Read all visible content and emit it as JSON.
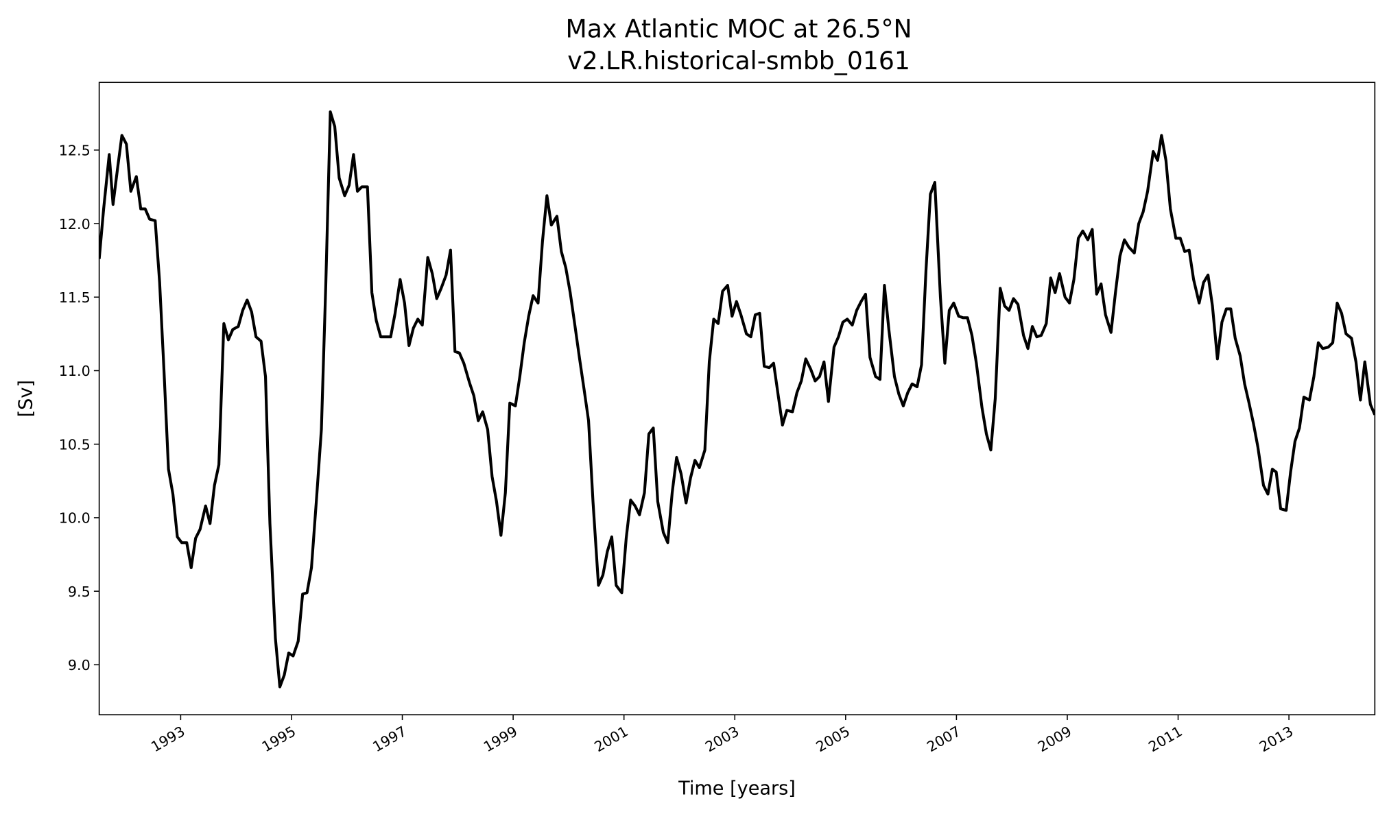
{
  "chart_data": {
    "type": "line",
    "title": "Max Atlantic MOC at 26.5°N",
    "subtitle": "v2.LR.historical-smbb_0161",
    "xlabel": "Time [years]",
    "ylabel": "[Sv]",
    "xlim": [
      1991.53,
      2014.55
    ],
    "ylim": [
      8.66,
      12.96
    ],
    "xticks": [
      "1993",
      "1995",
      "1997",
      "1999",
      "2001",
      "2003",
      "2005",
      "2007",
      "2009",
      "2011",
      "2013"
    ],
    "yticks": [
      "9.0",
      "9.5",
      "10.0",
      "10.5",
      "11.0",
      "11.5",
      "12.0",
      "12.5"
    ],
    "grid": false,
    "line_color": "#000000",
    "series": [
      {
        "points": [
          [
            1991.53,
            11.76
          ],
          [
            1991.61,
            12.1
          ],
          [
            1991.71,
            12.47
          ],
          [
            1991.78,
            12.13
          ],
          [
            1991.86,
            12.37
          ],
          [
            1991.94,
            12.6
          ],
          [
            1992.02,
            12.54
          ],
          [
            1992.1,
            12.22
          ],
          [
            1992.2,
            12.32
          ],
          [
            1992.28,
            12.1
          ],
          [
            1992.36,
            12.1
          ],
          [
            1992.44,
            12.03
          ],
          [
            1992.54,
            12.02
          ],
          [
            1992.62,
            11.6
          ],
          [
            1992.7,
            10.99
          ],
          [
            1992.78,
            10.33
          ],
          [
            1992.86,
            10.16
          ],
          [
            1992.94,
            9.87
          ],
          [
            1993.02,
            9.83
          ],
          [
            1993.11,
            9.83
          ],
          [
            1993.19,
            9.66
          ],
          [
            1993.27,
            9.86
          ],
          [
            1993.35,
            9.92
          ],
          [
            1993.45,
            10.08
          ],
          [
            1993.53,
            9.96
          ],
          [
            1993.61,
            10.22
          ],
          [
            1993.69,
            10.36
          ],
          [
            1993.78,
            11.32
          ],
          [
            1993.86,
            11.21
          ],
          [
            1993.94,
            11.28
          ],
          [
            1994.04,
            11.3
          ],
          [
            1994.12,
            11.41
          ],
          [
            1994.2,
            11.48
          ],
          [
            1994.28,
            11.4
          ],
          [
            1994.36,
            11.23
          ],
          [
            1994.45,
            11.2
          ],
          [
            1994.53,
            10.96
          ],
          [
            1994.61,
            9.96
          ],
          [
            1994.71,
            9.18
          ],
          [
            1994.79,
            8.85
          ],
          [
            1994.87,
            8.93
          ],
          [
            1994.95,
            9.08
          ],
          [
            1995.03,
            9.06
          ],
          [
            1995.12,
            9.16
          ],
          [
            1995.2,
            9.48
          ],
          [
            1995.28,
            9.49
          ],
          [
            1995.36,
            9.66
          ],
          [
            1995.46,
            10.17
          ],
          [
            1995.54,
            10.6
          ],
          [
            1995.62,
            11.59
          ],
          [
            1995.7,
            12.76
          ],
          [
            1995.78,
            12.66
          ],
          [
            1995.86,
            12.31
          ],
          [
            1995.96,
            12.19
          ],
          [
            1996.04,
            12.26
          ],
          [
            1996.12,
            12.47
          ],
          [
            1996.19,
            12.22
          ],
          [
            1996.27,
            12.25
          ],
          [
            1996.37,
            12.25
          ],
          [
            1996.45,
            11.53
          ],
          [
            1996.53,
            11.34
          ],
          [
            1996.61,
            11.23
          ],
          [
            1996.71,
            11.23
          ],
          [
            1996.79,
            11.23
          ],
          [
            1996.87,
            11.39
          ],
          [
            1996.96,
            11.62
          ],
          [
            1997.04,
            11.46
          ],
          [
            1997.12,
            11.17
          ],
          [
            1997.2,
            11.29
          ],
          [
            1997.28,
            11.35
          ],
          [
            1997.36,
            11.31
          ],
          [
            1997.46,
            11.77
          ],
          [
            1997.54,
            11.66
          ],
          [
            1997.62,
            11.49
          ],
          [
            1997.7,
            11.56
          ],
          [
            1997.79,
            11.65
          ],
          [
            1997.87,
            11.82
          ],
          [
            1997.95,
            11.13
          ],
          [
            1998.03,
            11.12
          ],
          [
            1998.11,
            11.05
          ],
          [
            1998.21,
            10.92
          ],
          [
            1998.29,
            10.83
          ],
          [
            1998.37,
            10.66
          ],
          [
            1998.45,
            10.72
          ],
          [
            1998.54,
            10.6
          ],
          [
            1998.62,
            10.28
          ],
          [
            1998.7,
            10.11
          ],
          [
            1998.78,
            9.88
          ],
          [
            1998.86,
            10.17
          ],
          [
            1998.94,
            10.78
          ],
          [
            1999.04,
            10.76
          ],
          [
            1999.12,
            10.96
          ],
          [
            1999.2,
            11.19
          ],
          [
            1999.28,
            11.37
          ],
          [
            1999.36,
            11.51
          ],
          [
            1999.45,
            11.46
          ],
          [
            1999.53,
            11.88
          ],
          [
            1999.61,
            12.19
          ],
          [
            1999.69,
            11.99
          ],
          [
            1999.79,
            12.05
          ],
          [
            1999.87,
            11.81
          ],
          [
            1999.95,
            11.7
          ],
          [
            2000.03,
            11.53
          ],
          [
            2000.11,
            11.32
          ],
          [
            2000.2,
            11.08
          ],
          [
            2000.28,
            10.87
          ],
          [
            2000.36,
            10.66
          ],
          [
            2000.44,
            10.11
          ],
          [
            2000.54,
            9.54
          ],
          [
            2000.62,
            9.61
          ],
          [
            2000.7,
            9.77
          ],
          [
            2000.78,
            9.87
          ],
          [
            2000.86,
            9.54
          ],
          [
            2000.96,
            9.49
          ],
          [
            2001.04,
            9.86
          ],
          [
            2001.12,
            10.12
          ],
          [
            2001.2,
            10.08
          ],
          [
            2001.28,
            10.02
          ],
          [
            2001.37,
            10.17
          ],
          [
            2001.45,
            10.57
          ],
          [
            2001.53,
            10.61
          ],
          [
            2001.61,
            10.11
          ],
          [
            2001.71,
            9.9
          ],
          [
            2001.79,
            9.83
          ],
          [
            2001.87,
            10.17
          ],
          [
            2001.95,
            10.41
          ],
          [
            2002.03,
            10.3
          ],
          [
            2002.12,
            10.1
          ],
          [
            2002.2,
            10.27
          ],
          [
            2002.28,
            10.39
          ],
          [
            2002.36,
            10.34
          ],
          [
            2002.46,
            10.46
          ],
          [
            2002.54,
            11.06
          ],
          [
            2002.62,
            11.35
          ],
          [
            2002.7,
            11.32
          ],
          [
            2002.78,
            11.54
          ],
          [
            2002.87,
            11.58
          ],
          [
            2002.95,
            11.37
          ],
          [
            2003.03,
            11.47
          ],
          [
            2003.11,
            11.38
          ],
          [
            2003.21,
            11.25
          ],
          [
            2003.29,
            11.23
          ],
          [
            2003.37,
            11.38
          ],
          [
            2003.45,
            11.39
          ],
          [
            2003.53,
            11.03
          ],
          [
            2003.62,
            11.02
          ],
          [
            2003.7,
            11.05
          ],
          [
            2003.78,
            10.84
          ],
          [
            2003.86,
            10.63
          ],
          [
            2003.94,
            10.73
          ],
          [
            2004.04,
            10.72
          ],
          [
            2004.12,
            10.85
          ],
          [
            2004.2,
            10.93
          ],
          [
            2004.28,
            11.08
          ],
          [
            2004.37,
            11.01
          ],
          [
            2004.45,
            10.93
          ],
          [
            2004.53,
            10.96
          ],
          [
            2004.61,
            11.06
          ],
          [
            2004.69,
            10.79
          ],
          [
            2004.79,
            11.16
          ],
          [
            2004.87,
            11.23
          ],
          [
            2004.95,
            11.33
          ],
          [
            2005.03,
            11.35
          ],
          [
            2005.12,
            11.31
          ],
          [
            2005.2,
            11.41
          ],
          [
            2005.28,
            11.47
          ],
          [
            2005.36,
            11.52
          ],
          [
            2005.44,
            11.09
          ],
          [
            2005.54,
            10.96
          ],
          [
            2005.62,
            10.94
          ],
          [
            2005.7,
            11.58
          ],
          [
            2005.78,
            11.28
          ],
          [
            2005.88,
            10.96
          ],
          [
            2005.96,
            10.84
          ],
          [
            2006.04,
            10.76
          ],
          [
            2006.12,
            10.85
          ],
          [
            2006.2,
            10.91
          ],
          [
            2006.29,
            10.89
          ],
          [
            2006.37,
            11.04
          ],
          [
            2006.45,
            11.68
          ],
          [
            2006.53,
            12.2
          ],
          [
            2006.61,
            12.28
          ],
          [
            2006.71,
            11.5
          ],
          [
            2006.79,
            11.05
          ],
          [
            2006.87,
            11.41
          ],
          [
            2006.95,
            11.46
          ],
          [
            2007.04,
            11.37
          ],
          [
            2007.12,
            11.36
          ],
          [
            2007.2,
            11.36
          ],
          [
            2007.28,
            11.24
          ],
          [
            2007.36,
            11.05
          ],
          [
            2007.46,
            10.75
          ],
          [
            2007.54,
            10.57
          ],
          [
            2007.62,
            10.46
          ],
          [
            2007.7,
            10.81
          ],
          [
            2007.79,
            11.56
          ],
          [
            2007.87,
            11.44
          ],
          [
            2007.95,
            11.41
          ],
          [
            2008.03,
            11.49
          ],
          [
            2008.11,
            11.45
          ],
          [
            2008.21,
            11.24
          ],
          [
            2008.29,
            11.15
          ],
          [
            2008.37,
            11.3
          ],
          [
            2008.45,
            11.23
          ],
          [
            2008.53,
            11.24
          ],
          [
            2008.62,
            11.32
          ],
          [
            2008.7,
            11.63
          ],
          [
            2008.78,
            11.53
          ],
          [
            2008.86,
            11.66
          ],
          [
            2008.96,
            11.5
          ],
          [
            2009.04,
            11.46
          ],
          [
            2009.12,
            11.62
          ],
          [
            2009.2,
            11.9
          ],
          [
            2009.28,
            11.95
          ],
          [
            2009.37,
            11.89
          ],
          [
            2009.45,
            11.96
          ],
          [
            2009.53,
            11.52
          ],
          [
            2009.61,
            11.59
          ],
          [
            2009.69,
            11.38
          ],
          [
            2009.79,
            11.26
          ],
          [
            2009.87,
            11.53
          ],
          [
            2009.95,
            11.78
          ],
          [
            2010.03,
            11.89
          ],
          [
            2010.11,
            11.84
          ],
          [
            2010.21,
            11.8
          ],
          [
            2010.29,
            12.0
          ],
          [
            2010.37,
            12.08
          ],
          [
            2010.45,
            12.22
          ],
          [
            2010.55,
            12.49
          ],
          [
            2010.63,
            12.43
          ],
          [
            2010.7,
            12.6
          ],
          [
            2010.78,
            12.43
          ],
          [
            2010.86,
            12.1
          ],
          [
            2010.96,
            11.9
          ],
          [
            2011.04,
            11.9
          ],
          [
            2011.12,
            11.81
          ],
          [
            2011.2,
            11.82
          ],
          [
            2011.28,
            11.62
          ],
          [
            2011.38,
            11.46
          ],
          [
            2011.46,
            11.6
          ],
          [
            2011.54,
            11.65
          ],
          [
            2011.62,
            11.44
          ],
          [
            2011.71,
            11.08
          ],
          [
            2011.79,
            11.33
          ],
          [
            2011.87,
            11.42
          ],
          [
            2011.95,
            11.42
          ],
          [
            2012.03,
            11.22
          ],
          [
            2012.12,
            11.1
          ],
          [
            2012.2,
            10.91
          ],
          [
            2012.28,
            10.78
          ],
          [
            2012.36,
            10.64
          ],
          [
            2012.44,
            10.48
          ],
          [
            2012.54,
            10.22
          ],
          [
            2012.62,
            10.16
          ],
          [
            2012.7,
            10.33
          ],
          [
            2012.77,
            10.31
          ],
          [
            2012.85,
            10.06
          ],
          [
            2012.95,
            10.05
          ],
          [
            2013.03,
            10.31
          ],
          [
            2013.11,
            10.52
          ],
          [
            2013.19,
            10.61
          ],
          [
            2013.27,
            10.82
          ],
          [
            2013.37,
            10.8
          ],
          [
            2013.45,
            10.96
          ],
          [
            2013.53,
            11.19
          ],
          [
            2013.61,
            11.15
          ],
          [
            2013.71,
            11.16
          ],
          [
            2013.79,
            11.19
          ],
          [
            2013.87,
            11.46
          ],
          [
            2013.95,
            11.39
          ],
          [
            2014.03,
            11.25
          ],
          [
            2014.13,
            11.22
          ],
          [
            2014.21,
            11.06
          ],
          [
            2014.29,
            10.8
          ],
          [
            2014.37,
            11.06
          ],
          [
            2014.47,
            10.77
          ],
          [
            2014.55,
            10.7
          ]
        ]
      }
    ]
  }
}
